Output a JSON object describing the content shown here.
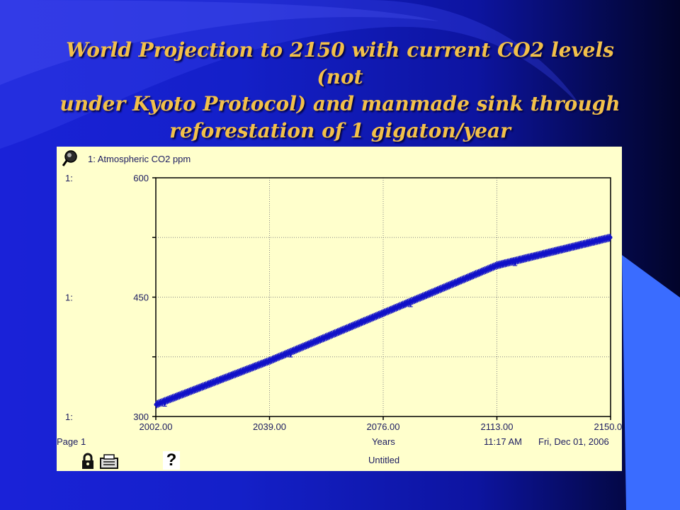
{
  "slide": {
    "title_lines": [
      "World Projection to 2150 with current CO2 levels (not",
      "under Kyoto Protocol) and manmade sink through",
      "reforestation of 1 gigaton/year"
    ]
  },
  "colors": {
    "title": "#f2c04a",
    "panel_background": "#ffffcc",
    "series_line": "#1010c8",
    "axis_text": "#1b1b60"
  },
  "icons": {
    "graph_pad": "magnifier-icon",
    "lock": "lock-icon",
    "printer": "printer-icon",
    "help": "question-mark-icon"
  },
  "graph": {
    "legend_label": "1: Atmospheric CO2 ppm",
    "y_tick_prefix": "1:",
    "page_label": "Page 1",
    "time_label": "11:17 AM",
    "date_label": "Fri, Dec 01, 2006",
    "model_label": "Untitled",
    "help_glyph": "?"
  },
  "chart_data": {
    "type": "line",
    "title": "",
    "xlabel": "Years",
    "ylabel": "",
    "xlim": [
      2002,
      2150
    ],
    "ylim": [
      300,
      600
    ],
    "x_ticks": [
      "2002.00",
      "2039.00",
      "2076.00",
      "2113.00",
      "2150.00"
    ],
    "y_ticks": [
      "300",
      "450",
      "600"
    ],
    "grid": true,
    "series": [
      {
        "name": "1: Atmospheric CO2 ppm",
        "marker_label": "1",
        "x": [
          2002,
          2039,
          2076,
          2113,
          2150
        ],
        "values": [
          315,
          370,
          430,
          490,
          525
        ]
      }
    ]
  }
}
